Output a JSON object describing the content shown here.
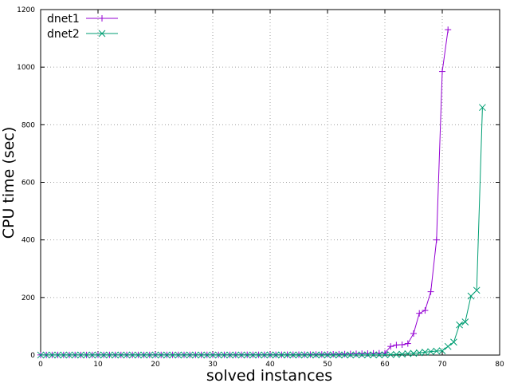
{
  "chart_data": {
    "type": "line",
    "title": "",
    "xlabel": "solved instances",
    "ylabel": "CPU time (sec)",
    "xlim": [
      0,
      80
    ],
    "ylim": [
      0,
      1200
    ],
    "xticks": [
      "0",
      "10",
      "20",
      "30",
      "40",
      "50",
      "60",
      "70",
      "80"
    ],
    "yticks": [
      "0",
      "200",
      "400",
      "600",
      "800",
      "1000",
      "1200"
    ],
    "grid": true,
    "legend_position": "top-left",
    "series": [
      {
        "name": "dnet1",
        "color": "#9400d3",
        "marker": "plus",
        "x": [
          0,
          1,
          2,
          3,
          4,
          5,
          6,
          7,
          8,
          9,
          10,
          11,
          12,
          13,
          14,
          15,
          16,
          17,
          18,
          19,
          20,
          21,
          22,
          23,
          24,
          25,
          26,
          27,
          28,
          29,
          30,
          31,
          32,
          33,
          34,
          35,
          36,
          37,
          38,
          39,
          40,
          41,
          42,
          43,
          44,
          45,
          46,
          47,
          48,
          49,
          50,
          51,
          52,
          53,
          54,
          55,
          56,
          57,
          58,
          59,
          60,
          61,
          62,
          63,
          64,
          65,
          66,
          67,
          68,
          69,
          70,
          71
        ],
        "y": [
          0.5,
          0.5,
          0.5,
          0.5,
          0.5,
          0.5,
          0.5,
          0.5,
          0.5,
          0.5,
          0.6,
          0.6,
          0.6,
          0.6,
          0.6,
          0.6,
          0.6,
          0.6,
          0.6,
          0.6,
          0.7,
          0.7,
          0.7,
          0.7,
          0.7,
          0.7,
          0.7,
          0.8,
          0.8,
          0.8,
          0.8,
          0.8,
          0.9,
          0.9,
          0.9,
          0.9,
          1,
          1,
          1,
          1,
          1,
          1.1,
          1.2,
          1.3,
          1.4,
          1.5,
          1.6,
          1.8,
          2,
          2.2,
          2.5,
          2.8,
          3,
          3.5,
          4,
          4.5,
          5,
          5.5,
          6,
          6.5,
          7,
          30,
          35,
          36,
          40,
          75,
          145,
          155,
          220,
          400,
          985,
          1130
        ]
      },
      {
        "name": "dnet2",
        "color": "#009e73",
        "marker": "cross",
        "x": [
          0,
          1,
          2,
          3,
          4,
          5,
          6,
          7,
          8,
          9,
          10,
          11,
          12,
          13,
          14,
          15,
          16,
          17,
          18,
          19,
          20,
          21,
          22,
          23,
          24,
          25,
          26,
          27,
          28,
          29,
          30,
          31,
          32,
          33,
          34,
          35,
          36,
          37,
          38,
          39,
          40,
          41,
          42,
          43,
          44,
          45,
          46,
          47,
          48,
          49,
          50,
          51,
          52,
          53,
          54,
          55,
          56,
          57,
          58,
          59,
          60,
          61,
          62,
          63,
          64,
          65,
          66,
          67,
          68,
          69,
          70,
          71,
          72,
          73,
          74,
          75,
          76,
          77
        ],
        "y": [
          0.2,
          0.2,
          0.2,
          0.2,
          0.2,
          0.2,
          0.2,
          0.2,
          0.2,
          0.2,
          0.2,
          0.2,
          0.2,
          0.2,
          0.2,
          0.2,
          0.2,
          0.2,
          0.2,
          0.2,
          0.2,
          0.2,
          0.2,
          0.2,
          0.2,
          0.2,
          0.2,
          0.2,
          0.2,
          0.2,
          0.2,
          0.2,
          0.2,
          0.2,
          0.2,
          0.2,
          0.2,
          0.2,
          0.2,
          0.2,
          0.3,
          0.3,
          0.3,
          0.3,
          0.3,
          0.3,
          0.3,
          0.3,
          0.3,
          0.3,
          0.4,
          0.4,
          0.4,
          0.4,
          0.4,
          0.5,
          0.5,
          0.6,
          0.7,
          0.8,
          1,
          1.5,
          2,
          3,
          5,
          6,
          8,
          10,
          12,
          14,
          15,
          30,
          45,
          105,
          115,
          205,
          225,
          860
        ]
      }
    ]
  }
}
